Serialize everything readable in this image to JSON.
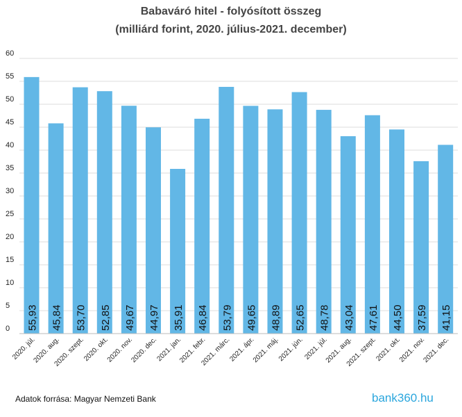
{
  "header": {
    "title": "Babaváró hitel - folyósított összeg",
    "subtitle": "(milliárd forint, 2020. július-2021. december)"
  },
  "footer": {
    "source": "Adatok forrása: Magyar Nemzeti Bank",
    "logo_text": "bank360.hu"
  },
  "colors": {
    "bar": "#62b7e6",
    "grid": "#dddddd",
    "text": "#222222"
  },
  "chart_data": {
    "type": "bar",
    "title": "Babaváró hitel - folyósított összeg",
    "subtitle": "(milliárd forint, 2020. július-2021. december)",
    "categories": [
      "2020. júl.",
      "2020. aug.",
      "2020. szept.",
      "2020. okt.",
      "2020. nov.",
      "2020. dec.",
      "2021. jan.",
      "2021. febr.",
      "2021. márc.",
      "2021. ápr.",
      "2021. máj.",
      "2021. jún.",
      "2021. júl.",
      "2021. aug.",
      "2021. szept.",
      "2021. okt.",
      "2021. nov.",
      "2021. dec."
    ],
    "values": [
      55.93,
      45.84,
      53.7,
      52.85,
      49.67,
      44.97,
      35.91,
      46.84,
      53.79,
      49.65,
      48.89,
      52.65,
      48.78,
      43.04,
      47.61,
      44.5,
      37.59,
      41.15
    ],
    "value_labels": [
      "55,93",
      "45,84",
      "53,70",
      "52,85",
      "49,67",
      "44,97",
      "35,91",
      "46,84",
      "53,79",
      "49,65",
      "48,89",
      "52,65",
      "48,78",
      "43,04",
      "47,61",
      "44,50",
      "37,59",
      "41,15"
    ],
    "yticks": [
      "0",
      "5",
      "10",
      "15",
      "20",
      "25",
      "30",
      "35",
      "40",
      "45",
      "50",
      "55",
      "60"
    ],
    "ylim": [
      0,
      60
    ],
    "grid": true,
    "xlabel": "",
    "ylabel": ""
  }
}
